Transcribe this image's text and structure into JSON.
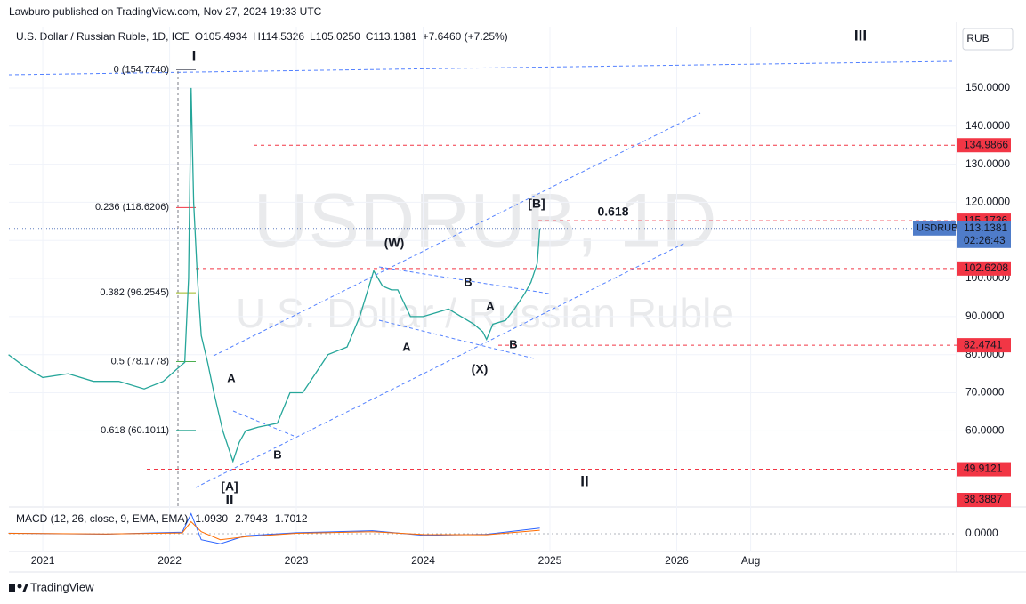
{
  "header": {
    "publisher": "Lawburo published on TradingView.com, Nov 27, 2024 19:33 UTC",
    "symbol": "U.S. Dollar / Russian Ruble, 1D, ICE",
    "ohlc": [
      [
        "O",
        "105.4934"
      ],
      [
        "H",
        "114.5326"
      ],
      [
        "L",
        "105.0250"
      ],
      [
        "C",
        "113.1381"
      ]
    ],
    "change": "+7.6460 (+7.25%)",
    "currency": "RUB"
  },
  "watermark": [
    "USDRUB, 1D",
    "U.S. Dollar / Russian Ruble"
  ],
  "chart_data": {
    "type": "line",
    "color": "#26a69a",
    "x": [
      2020.73,
      2020.85,
      2021.0,
      2021.2,
      2021.4,
      2021.6,
      2021.8,
      2021.95,
      2022.05,
      2022.12,
      2022.15,
      2022.17,
      2022.19,
      2022.22,
      2022.25,
      2022.3,
      2022.35,
      2022.42,
      2022.5,
      2022.55,
      2022.6,
      2022.7,
      2022.85,
      2022.95,
      2023.05,
      2023.15,
      2023.25,
      2023.4,
      2023.5,
      2023.61,
      2023.68,
      2023.75,
      2023.8,
      2023.9,
      2024.0,
      2024.1,
      2024.2,
      2024.3,
      2024.4,
      2024.47,
      2024.5,
      2024.55,
      2024.65,
      2024.72,
      2024.8,
      2024.85,
      2024.9,
      2024.92
    ],
    "values": [
      80,
      77,
      74,
      75,
      73,
      73,
      71,
      73,
      76,
      78,
      100,
      150,
      120,
      100,
      85,
      78,
      70,
      60,
      52,
      57,
      60,
      61,
      62,
      70,
      70,
      75,
      80,
      82,
      90,
      102,
      98,
      97,
      97,
      90,
      90,
      91,
      92,
      90,
      88,
      86,
      84,
      88,
      89,
      92,
      96,
      99,
      104,
      113.1381
    ],
    "xlim": [
      2020.733,
      2028.207
    ],
    "ylim": [
      40,
      166.1
    ],
    "xticks": [
      2021,
      2022,
      2023,
      2024,
      2025,
      2026,
      {
        "value": 2026.583,
        "label": "Aug"
      }
    ],
    "yticks": [
      {
        "value": 150,
        "label": "150.0000"
      },
      {
        "value": 140,
        "label": "140.0000"
      },
      {
        "value": 130,
        "label": "130.0000"
      },
      {
        "value": 120,
        "label": "120.0000"
      },
      {
        "value": 110,
        "label": "110.0000"
      },
      {
        "value": 100,
        "label": "100.0000"
      },
      {
        "value": 90,
        "label": "90.0000"
      },
      {
        "value": 80,
        "label": "80.0000"
      },
      {
        "value": 70,
        "label": "70.0000"
      },
      {
        "value": 60,
        "label": "60.0000"
      }
    ],
    "grid": true,
    "levels": [
      134.9866,
      115.1736,
      102.6208,
      82.4741,
      49.9121,
      38.3887
    ],
    "fib": [
      {
        "value": 154.774,
        "label": "0 (154.7740)",
        "color": "#787b86"
      },
      {
        "value": 118.6206,
        "label": "0.236 (118.6206)",
        "color": "#f23645"
      },
      {
        "value": 96.2545,
        "label": "0.382 (96.2545)",
        "color": "#9bb81e"
      },
      {
        "value": 78.1778,
        "label": "0.5 (78.1778)",
        "color": "#4caf50"
      },
      {
        "value": 60.1011,
        "label": "0.618 (60.1011)",
        "color": "#089981"
      }
    ],
    "last": {
      "name": "USDRUB",
      "value": 113.1381,
      "countdown": "02:26:43"
    },
    "wave_labels": [
      "I",
      "II",
      "III",
      "(W)",
      "(X)",
      "[A]",
      "[B]",
      "A",
      "B",
      "A",
      "B",
      "A",
      "B",
      "II",
      "0.618"
    ]
  },
  "macd": {
    "title": "MACD (12, 26, close, 9, EMA, EMA)",
    "readings": [
      "1.0930",
      "2.7943",
      "1.7012"
    ],
    "x": [
      2020.73,
      2021.5,
      2022.1,
      2022.17,
      2022.25,
      2022.4,
      2022.6,
      2023.0,
      2023.6,
      2024.0,
      2024.5,
      2024.92
    ],
    "macd": [
      0.3,
      -0.2,
      0.8,
      10,
      -3,
      -5,
      -1,
      0.5,
      1.5,
      -0.8,
      -0.3,
      2.7943
    ],
    "signal": [
      0.2,
      -0.1,
      0.4,
      6,
      1,
      -3,
      -1.5,
      0.2,
      1.0,
      -0.4,
      -0.5,
      1.7012
    ],
    "ylim": [
      -8,
      12
    ],
    "yticks": [
      {
        "value": 0,
        "label": "0.0000"
      }
    ]
  },
  "footer": "TradingView"
}
